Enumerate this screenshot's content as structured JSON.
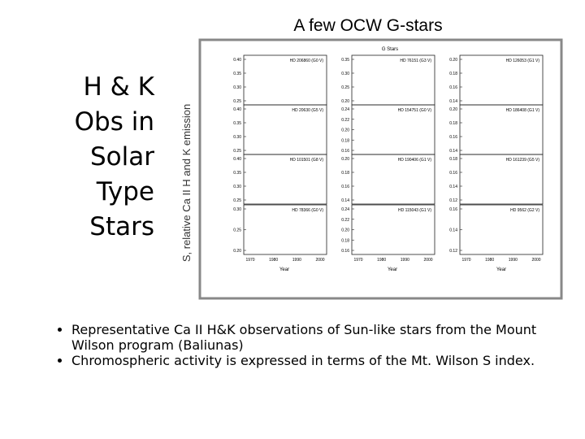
{
  "title": {
    "lines": [
      "H & K",
      "Obs in",
      "Solar",
      "Type",
      "Stars"
    ]
  },
  "figure": {
    "caption": "A few OCW G-stars",
    "inner_title": "G Stars",
    "y_label": "S, relative Ca II H and K emission",
    "x_label": "Year",
    "xticks": [
      "1970",
      "1980",
      "1990",
      "2000"
    ],
    "panels": [
      {
        "label": "HD 206860 (G0 V)",
        "yticks": [
          "0.40",
          "0.35",
          "0.30",
          "0.25"
        ]
      },
      {
        "label": "HD 76151 (G3 V)",
        "yticks": [
          "0.35",
          "0.30",
          "0.25",
          "0.20"
        ]
      },
      {
        "label": "HD 126053 (G1 V)",
        "yticks": [
          "0.20",
          "0.18",
          "0.16",
          "0.14"
        ]
      },
      {
        "label": "HD 20630 (G5 V)",
        "yticks": [
          "0.40",
          "0.35",
          "0.30",
          "0.25"
        ]
      },
      {
        "label": "HD 154751 (G0 V)",
        "yticks": [
          "0.24",
          "0.22",
          "0.20",
          "0.18",
          "0.16"
        ]
      },
      {
        "label": "HD 186408 (G1 V)",
        "yticks": [
          "0.20",
          "0.18",
          "0.16",
          "0.14"
        ]
      },
      {
        "label": "HD 101501 (G8 V)",
        "yticks": [
          "0.40",
          "0.35",
          "0.30",
          "0.25"
        ]
      },
      {
        "label": "HD 190406 (G1 V)",
        "yticks": [
          "0.20",
          "0.18",
          "0.16",
          "0.14"
        ]
      },
      {
        "label": "HD 161239 (G5 V)",
        "yticks": [
          "0.18",
          "0.16",
          "0.14",
          "0.12"
        ]
      },
      {
        "label": "HD 78366 (G0 V)",
        "yticks": [
          "0.30",
          "0.25",
          "0.20"
        ]
      },
      {
        "label": "HD 115043 (G1 V)",
        "yticks": [
          "0.24",
          "0.22",
          "0.20",
          "0.18",
          "0.16"
        ]
      },
      {
        "label": "HD 9562 (G2 V)",
        "yticks": [
          "0.16",
          "0.14",
          "0.12"
        ]
      }
    ]
  },
  "bullets": [
    "Representative Ca II H&K observations of Sun-like stars from the Mount Wilson program (Baliunas)",
    "Chromospheric activity is expressed in terms of the Mt. Wilson S index."
  ]
}
